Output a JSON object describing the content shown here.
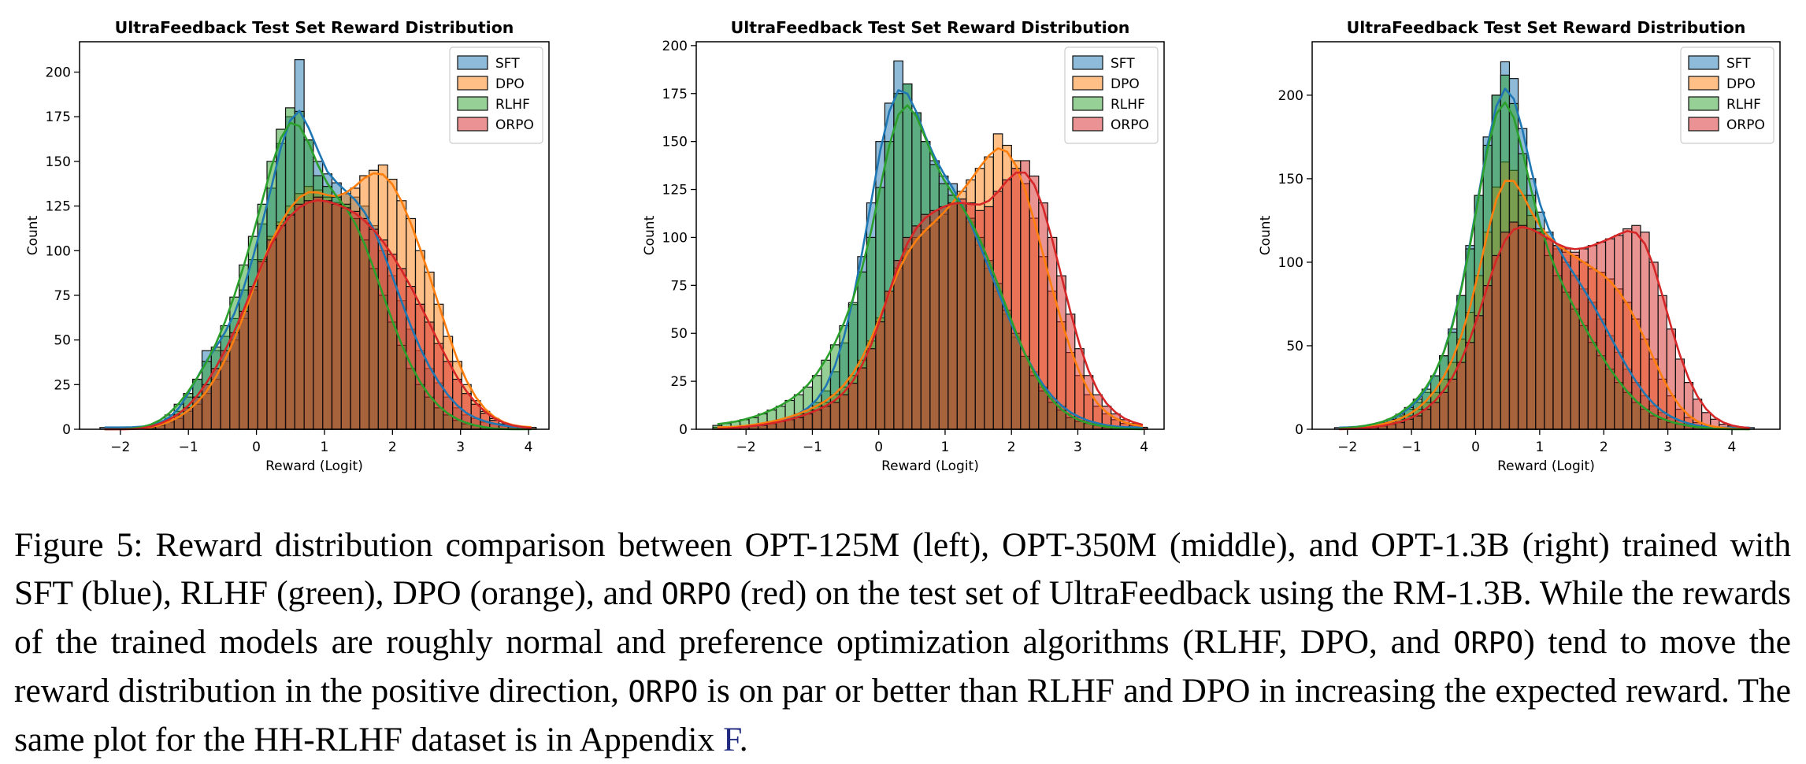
{
  "chart_data": [
    {
      "type": "bar",
      "title": "UltraFeedback Test Set Reward Distribution",
      "xlabel": "Reward (Logit)",
      "ylabel": "Count",
      "xlim": [
        -2.6,
        4.3
      ],
      "ylim": [
        0,
        217
      ],
      "xticks": [
        -2,
        -1,
        0,
        1,
        2,
        3,
        4
      ],
      "yticks": [
        0,
        25,
        50,
        75,
        100,
        125,
        150,
        175,
        200
      ],
      "legend_position": "top-right",
      "x_start": -2.3,
      "bin_width": 0.1364,
      "series": [
        {
          "name": "SFT",
          "color": "#1f77b4",
          "values": [
            1,
            1,
            1,
            1,
            1,
            2,
            3,
            5,
            10,
            18,
            28,
            44,
            44,
            52,
            62,
            78,
            95,
            115,
            135,
            160,
            175,
            207,
            162,
            150,
            143,
            138,
            132,
            130,
            125,
            114,
            100,
            86,
            72,
            56,
            44,
            34,
            26,
            18,
            12,
            8,
            6,
            4,
            3,
            2,
            1,
            1,
            1
          ]
        },
        {
          "name": "DPO",
          "color": "#ff7f0e",
          "values": [
            0,
            0,
            0,
            0,
            0,
            1,
            2,
            4,
            6,
            10,
            14,
            20,
            28,
            38,
            50,
            62,
            78,
            95,
            108,
            116,
            125,
            132,
            136,
            134,
            130,
            127,
            132,
            135,
            142,
            145,
            148,
            140,
            128,
            118,
            100,
            88,
            70,
            52,
            38,
            25,
            16,
            10,
            6,
            3,
            2,
            1,
            1
          ]
        },
        {
          "name": "RLHF",
          "color": "#2ca02c",
          "values": [
            0,
            0,
            0,
            0,
            1,
            2,
            4,
            8,
            14,
            20,
            28,
            38,
            46,
            58,
            74,
            92,
            108,
            126,
            150,
            168,
            180,
            178,
            162,
            142,
            136,
            130,
            126,
            118,
            106,
            90,
            75,
            60,
            47,
            34,
            25,
            18,
            12,
            8,
            5,
            3,
            2,
            1,
            0,
            0,
            0,
            0,
            0
          ]
        },
        {
          "name": "ORPO",
          "color": "#d62728",
          "values": [
            0,
            0,
            0,
            0,
            0,
            1,
            3,
            5,
            8,
            12,
            18,
            25,
            34,
            44,
            54,
            66,
            80,
            94,
            106,
            114,
            120,
            126,
            128,
            130,
            128,
            126,
            124,
            122,
            118,
            112,
            106,
            98,
            90,
            80,
            70,
            60,
            48,
            38,
            28,
            20,
            14,
            9,
            5,
            3,
            2,
            1,
            0
          ]
        }
      ]
    },
    {
      "type": "bar",
      "title": "UltraFeedback Test Set Reward Distribution",
      "xlabel": "Reward (Logit)",
      "ylabel": "Count",
      "xlim": [
        -2.75,
        4.3
      ],
      "ylim": [
        0,
        202
      ],
      "xticks": [
        -2,
        -1,
        0,
        1,
        2,
        3,
        4
      ],
      "yticks": [
        0,
        25,
        50,
        75,
        100,
        125,
        150,
        175,
        200
      ],
      "legend_position": "top-right",
      "x_start": -2.5,
      "bin_width": 0.1364,
      "series": [
        {
          "name": "SFT",
          "color": "#1f77b4",
          "values": [
            1,
            1,
            1,
            1,
            2,
            2,
            3,
            4,
            6,
            8,
            10,
            14,
            20,
            30,
            45,
            65,
            90,
            118,
            150,
            170,
            192,
            180,
            165,
            150,
            140,
            132,
            128,
            118,
            108,
            96,
            84,
            72,
            60,
            48,
            38,
            30,
            22,
            16,
            12,
            8,
            6,
            4,
            3,
            2,
            1,
            1,
            1,
            1
          ]
        },
        {
          "name": "DPO",
          "color": "#ff7f0e",
          "values": [
            1,
            1,
            1,
            2,
            2,
            3,
            4,
            5,
            6,
            8,
            10,
            12,
            14,
            18,
            22,
            28,
            36,
            46,
            58,
            72,
            84,
            94,
            100,
            104,
            108,
            112,
            118,
            124,
            130,
            136,
            142,
            154,
            148,
            140,
            128,
            110,
            90,
            72,
            56,
            40,
            28,
            18,
            12,
            8,
            5,
            3,
            2,
            1
          ]
        },
        {
          "name": "RLHF",
          "color": "#2ca02c",
          "values": [
            2,
            3,
            4,
            5,
            6,
            8,
            10,
            12,
            15,
            18,
            22,
            28,
            36,
            44,
            54,
            66,
            82,
            100,
            126,
            150,
            175,
            180,
            165,
            150,
            138,
            128,
            122,
            118,
            110,
            100,
            88,
            76,
            62,
            50,
            38,
            28,
            20,
            14,
            10,
            6,
            4,
            3,
            2,
            1,
            1,
            0,
            0,
            0
          ]
        },
        {
          "name": "ORPO",
          "color": "#d62728",
          "values": [
            0,
            0,
            1,
            1,
            2,
            2,
            3,
            4,
            5,
            6,
            8,
            10,
            12,
            14,
            18,
            24,
            32,
            42,
            56,
            72,
            88,
            100,
            106,
            112,
            114,
            116,
            118,
            120,
            118,
            114,
            116,
            124,
            130,
            136,
            140,
            132,
            118,
            100,
            80,
            60,
            42,
            28,
            18,
            12,
            8,
            5,
            3,
            1
          ]
        }
      ]
    },
    {
      "type": "bar",
      "title": "UltraFeedback Test Set Reward Distribution",
      "xlabel": "Reward (Logit)",
      "ylabel": "Count",
      "xlim": [
        -2.55,
        4.75
      ],
      "ylim": [
        0,
        232
      ],
      "xticks": [
        -2,
        -1,
        0,
        1,
        2,
        3,
        4
      ],
      "yticks": [
        0,
        50,
        100,
        150,
        200
      ],
      "legend_position": "top-right",
      "x_start": -2.2,
      "bin_width": 0.1364,
      "series": [
        {
          "name": "SFT",
          "color": "#1f77b4",
          "values": [
            1,
            1,
            1,
            2,
            3,
            4,
            6,
            8,
            12,
            16,
            22,
            32,
            44,
            60,
            80,
            110,
            140,
            175,
            200,
            220,
            210,
            180,
            150,
            130,
            118,
            108,
            100,
            92,
            84,
            76,
            66,
            56,
            46,
            36,
            28,
            20,
            14,
            10,
            7,
            5,
            3,
            2,
            1,
            1,
            1,
            1,
            1,
            1
          ]
        },
        {
          "name": "DPO",
          "color": "#ff7f0e",
          "values": [
            0,
            0,
            1,
            1,
            2,
            3,
            4,
            6,
            8,
            12,
            16,
            22,
            30,
            40,
            54,
            70,
            92,
            118,
            145,
            160,
            155,
            140,
            128,
            120,
            114,
            110,
            106,
            104,
            100,
            96,
            94,
            90,
            84,
            76,
            66,
            54,
            42,
            30,
            20,
            12,
            7,
            4,
            2,
            1,
            1,
            0,
            0,
            0
          ]
        },
        {
          "name": "RLHF",
          "color": "#2ca02c",
          "values": [
            0,
            1,
            1,
            2,
            3,
            4,
            6,
            9,
            13,
            18,
            24,
            32,
            44,
            58,
            80,
            108,
            140,
            170,
            200,
            212,
            195,
            165,
            140,
            120,
            104,
            92,
            82,
            72,
            62,
            52,
            44,
            36,
            28,
            22,
            16,
            12,
            8,
            6,
            4,
            3,
            2,
            1,
            1,
            0,
            0,
            0,
            0,
            0
          ]
        },
        {
          "name": "ORPO",
          "color": "#d62728",
          "values": [
            0,
            0,
            0,
            1,
            1,
            2,
            3,
            4,
            6,
            8,
            12,
            16,
            22,
            30,
            40,
            52,
            68,
            86,
            104,
            118,
            124,
            122,
            120,
            118,
            114,
            110,
            108,
            106,
            108,
            110,
            112,
            114,
            116,
            120,
            122,
            118,
            100,
            80,
            60,
            42,
            28,
            18,
            10,
            6,
            3,
            2,
            1,
            0
          ]
        }
      ]
    }
  ],
  "caption": {
    "lead": "Figure 5: Reward distribution comparison between OPT-125M (left), OPT-350M (middle), and OPT-1.3B (right) trained with SFT (blue), RLHF (green), DPO (orange), and ",
    "orpo_1": "ORPO",
    "part2": " (red) on the test set of UltraFeedback using the RM-1.3B. While the rewards of the trained models are roughly normal and preference optimization algorithms (RLHF, DPO, and ",
    "orpo_2": "ORPO",
    "part3": ") tend to move the reward distribution in the positive direction, ",
    "orpo_3": "ORPO",
    "part4": " is on par or better than RLHF and DPO in increasing the expected reward. The same plot for the HH-RLHF dataset is in Appendix ",
    "appendix_ref": "F",
    "end": "."
  }
}
